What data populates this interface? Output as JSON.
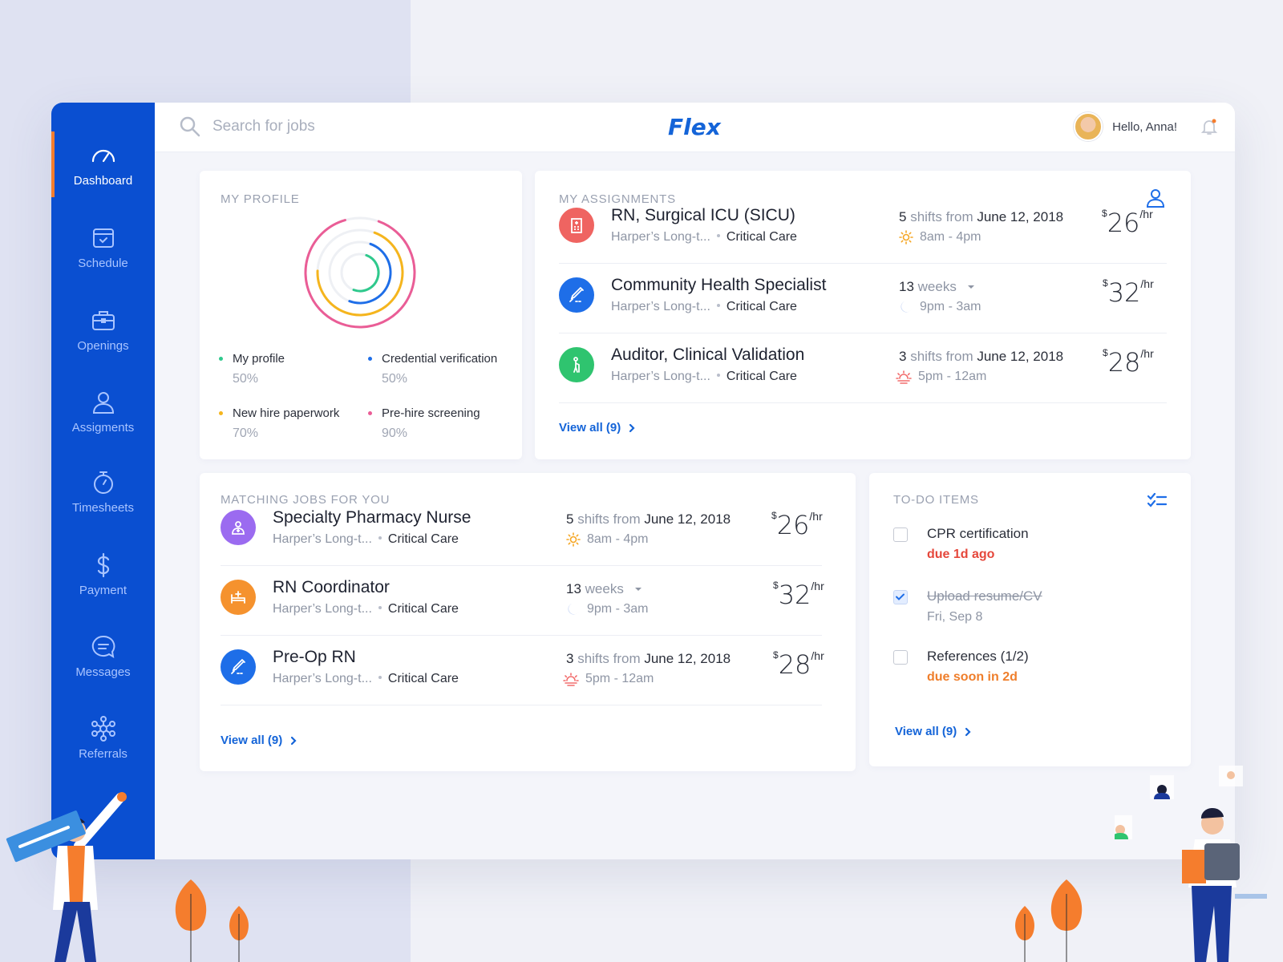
{
  "app": {
    "brand": "Flex",
    "greeting": "Hello, Anna!"
  },
  "search": {
    "placeholder": "Search for jobs"
  },
  "sidebar": {
    "items": [
      {
        "label": "Dashboard",
        "icon": "gauge-icon"
      },
      {
        "label": "Schedule",
        "icon": "calendar-icon"
      },
      {
        "label": "Openings",
        "icon": "briefcase-icon"
      },
      {
        "label": "Assigments",
        "icon": "person-icon"
      },
      {
        "label": "Timesheets",
        "icon": "stopwatch-icon"
      },
      {
        "label": "Payment",
        "icon": "dollar-icon"
      },
      {
        "label": "Messages",
        "icon": "chat-icon"
      },
      {
        "label": "Referrals",
        "icon": "network-icon"
      }
    ]
  },
  "profile": {
    "title": "MY PROFILE",
    "legend": [
      {
        "label": "My profile",
        "value": "50%",
        "color": "#2fc98d"
      },
      {
        "label": "Credential verification",
        "value": "50%",
        "color": "#1e6ee8"
      },
      {
        "label": "New hire paperwork",
        "value": "70%",
        "color": "#f5b51d"
      },
      {
        "label": "Pre-hire screening",
        "value": "90%",
        "color": "#ea5d96"
      }
    ]
  },
  "assignments": {
    "title": "MY ASSIGNMENTS",
    "view_all": "View all (9)",
    "rows": [
      {
        "title": "RN, Surgical ICU (SICU)",
        "facility": "Harper’s Long-t...",
        "dept": "Critical Care",
        "count": "5",
        "count_text": "shifts from",
        "date": "June 12, 2018",
        "time": "8am - 4pm",
        "shift_icon": "sun-icon",
        "currency": "$",
        "rate": "26",
        "per": "/hr",
        "color": "#ef6461",
        "icon": "hospital-icon"
      },
      {
        "title": "Community Health Specialist",
        "facility": "Harper’s Long-t...",
        "dept": "Critical Care",
        "count": "13",
        "count_text": "weeks",
        "date": "",
        "time": "9pm - 3am",
        "shift_icon": "moon-icon",
        "currency": "$",
        "rate": "32",
        "per": "/hr",
        "color": "#1e6ee8",
        "icon": "syringe-icon"
      },
      {
        "title": "Auditor, Clinical Validation",
        "facility": "Harper’s Long-t...",
        "dept": "Critical Care",
        "count": "3",
        "count_text": "shifts from",
        "date": "June 12, 2018",
        "time": "5pm - 12am",
        "shift_icon": "sunset-icon",
        "currency": "$",
        "rate": "28",
        "per": "/hr",
        "color": "#2fc46f",
        "icon": "elderly-icon"
      }
    ]
  },
  "matching": {
    "title": "MATCHING JOBS FOR YOU",
    "view_all": "View all (9)",
    "rows": [
      {
        "title": "Specialty Pharmacy Nurse",
        "facility": "Harper’s Long-t...",
        "dept": "Critical Care",
        "count": "5",
        "count_text": "shifts from",
        "date": "June 12, 2018",
        "time": "8am - 4pm",
        "shift_icon": "sun-icon",
        "currency": "$",
        "rate": "26",
        "per": "/hr",
        "color": "#9b6bf0",
        "icon": "pharmacist-icon"
      },
      {
        "title": "RN Coordinator",
        "facility": "Harper’s Long-t...",
        "dept": "Critical Care",
        "count": "13",
        "count_text": "weeks",
        "date": "",
        "time": "9pm - 3am",
        "shift_icon": "moon-icon",
        "currency": "$",
        "rate": "32",
        "per": "/hr",
        "color": "#f5922e",
        "icon": "bed-icon"
      },
      {
        "title": "Pre-Op RN",
        "facility": "Harper’s Long-t...",
        "dept": "Critical Care",
        "count": "3",
        "count_text": "shifts from",
        "date": "June 12, 2018",
        "time": "5pm - 12am",
        "shift_icon": "sunset-icon",
        "currency": "$",
        "rate": "28",
        "per": "/hr",
        "color": "#1e6ee8",
        "icon": "syringe-icon"
      }
    ]
  },
  "todo": {
    "title": "TO-DO ITEMS",
    "view_all": "View all (9)",
    "items": [
      {
        "label": "CPR certification",
        "sub": "due 1d ago",
        "checked": false
      },
      {
        "label": "Upload resume/CV",
        "sub": "Fri, Sep 8",
        "checked": true
      },
      {
        "label": "References (1/2)",
        "sub": "due soon in 2d",
        "checked": false
      }
    ]
  }
}
